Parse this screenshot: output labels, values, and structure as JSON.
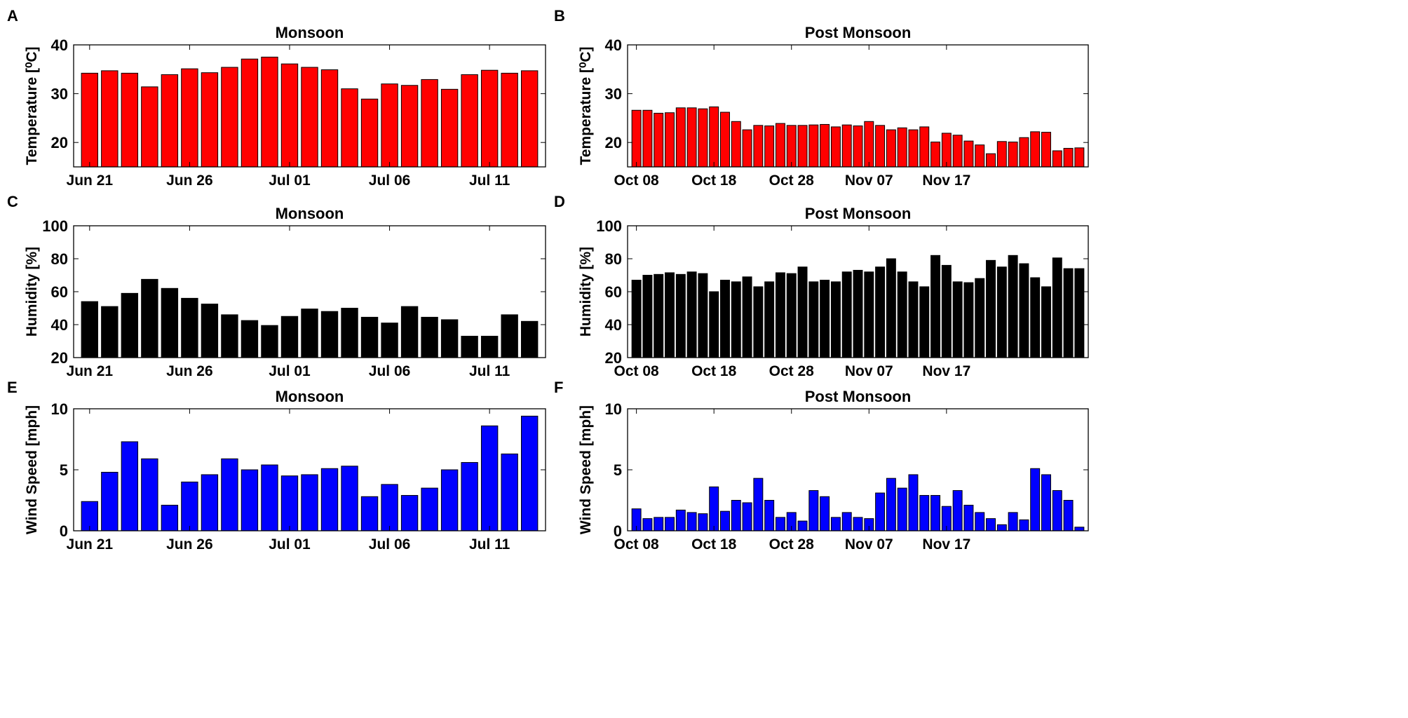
{
  "chart_data": [
    {
      "panel": "A",
      "type": "bar",
      "title": "Monsoon",
      "ylabel": "Temperature [⁰C]",
      "ylim": [
        15,
        40
      ],
      "yticks": [
        20,
        30,
        40
      ],
      "color": "#ff0000",
      "categories_start": "Jun 21",
      "xtick_labels": [
        "Jun 21",
        "Jun 26",
        "Jul 01",
        "Jul 06",
        "Jul 11"
      ],
      "xtick_index": [
        0,
        5,
        10,
        15,
        20
      ],
      "values": [
        34.2,
        34.7,
        34.2,
        31.4,
        33.9,
        35.1,
        34.3,
        35.4,
        37.1,
        37.5,
        36.1,
        35.4,
        34.9,
        31.0,
        28.9,
        32.0,
        31.7,
        32.9,
        30.9,
        33.9,
        34.8,
        34.2,
        34.7
      ]
    },
    {
      "panel": "B",
      "type": "bar",
      "title": "Post Monsoon",
      "ylabel": "Temperature [⁰C]",
      "ylim": [
        15,
        40
      ],
      "yticks": [
        20,
        30,
        40
      ],
      "color": "#ff0000",
      "xtick_labels": [
        "Oct 08",
        "Oct 18",
        "Oct 28",
        "Nov 07",
        "Nov 17"
      ],
      "xtick_index": [
        0,
        7,
        14,
        21,
        28
      ],
      "values": [
        26.6,
        26.6,
        26.0,
        26.1,
        27.1,
        27.1,
        26.9,
        27.3,
        26.2,
        24.3,
        22.6,
        23.5,
        23.4,
        23.9,
        23.5,
        23.5,
        23.6,
        23.7,
        23.2,
        23.6,
        23.4,
        24.3,
        23.5,
        22.6,
        23.0,
        22.6,
        23.2,
        20.1,
        21.9,
        21.5,
        20.3,
        19.5,
        17.7,
        20.2,
        20.1,
        21.0,
        22.2,
        22.1,
        18.3,
        18.8,
        18.9
      ]
    },
    {
      "panel": "C",
      "type": "bar",
      "title": "Monsoon",
      "ylabel": "Humidity [%]",
      "ylim": [
        20,
        100
      ],
      "yticks": [
        20,
        40,
        60,
        80,
        100
      ],
      "color": "#000000",
      "xtick_labels": [
        "Jun 21",
        "Jun 26",
        "Jul 01",
        "Jul 06",
        "Jul 11"
      ],
      "xtick_index": [
        0,
        5,
        10,
        15,
        20
      ],
      "values": [
        54,
        51,
        59,
        67.5,
        62,
        56,
        52.5,
        46,
        42.5,
        39.5,
        45,
        49.5,
        48,
        50,
        44.5,
        41,
        51,
        44.5,
        43,
        33,
        33,
        46,
        42
      ]
    },
    {
      "panel": "D",
      "type": "bar",
      "title": "Post Monsoon",
      "ylabel": "Humidity [%]",
      "ylim": [
        20,
        100
      ],
      "yticks": [
        20,
        40,
        60,
        80,
        100
      ],
      "color": "#000000",
      "xtick_labels": [
        "Oct 08",
        "Oct 18",
        "Oct 28",
        "Nov 07",
        "Nov 17"
      ],
      "xtick_index": [
        0,
        7,
        14,
        21,
        28
      ],
      "values": [
        67,
        70,
        70.5,
        71.5,
        70.5,
        72,
        71,
        60,
        67,
        66,
        69,
        63,
        66,
        71.5,
        71,
        75,
        66,
        67,
        66,
        72,
        73,
        72,
        75,
        80,
        72,
        66,
        63,
        82,
        76,
        66,
        65.5,
        68,
        79,
        75,
        82,
        77,
        68.5,
        63,
        80.5,
        74,
        74
      ]
    },
    {
      "panel": "E",
      "type": "bar",
      "title": "Monsoon",
      "ylabel": "Wind Speed [mph]",
      "ylim": [
        0,
        10
      ],
      "yticks": [
        0,
        5,
        10
      ],
      "color": "#0000ff",
      "xtick_labels": [
        "Jun 21",
        "Jun 26",
        "Jul 01",
        "Jul 06",
        "Jul 11"
      ],
      "xtick_index": [
        0,
        5,
        10,
        15,
        20
      ],
      "values": [
        2.4,
        4.8,
        7.3,
        5.9,
        2.1,
        4.0,
        4.6,
        5.9,
        5.0,
        5.4,
        4.5,
        4.6,
        5.1,
        5.3,
        2.8,
        3.8,
        2.9,
        3.5,
        5.0,
        5.6,
        8.6,
        6.3,
        9.4
      ]
    },
    {
      "panel": "F",
      "type": "bar",
      "title": "Post Monsoon",
      "ylabel": "Wind Speed [mph]",
      "ylim": [
        0,
        10
      ],
      "yticks": [
        0,
        5,
        10
      ],
      "color": "#0000ff",
      "xtick_labels": [
        "Oct 08",
        "Oct 18",
        "Oct 28",
        "Nov 07",
        "Nov 17"
      ],
      "xtick_index": [
        0,
        7,
        14,
        21,
        28
      ],
      "values": [
        1.8,
        1.0,
        1.1,
        1.1,
        1.7,
        1.5,
        1.4,
        3.6,
        1.6,
        2.5,
        2.3,
        4.3,
        2.5,
        1.1,
        1.5,
        0.8,
        3.3,
        2.8,
        1.1,
        1.5,
        1.1,
        1.0,
        3.1,
        4.3,
        3.5,
        4.6,
        2.9,
        2.9,
        2.0,
        3.3,
        2.1,
        1.5,
        1.0,
        0.5,
        1.5,
        0.9,
        5.1,
        4.6,
        3.3,
        2.5,
        0.3
      ]
    }
  ]
}
